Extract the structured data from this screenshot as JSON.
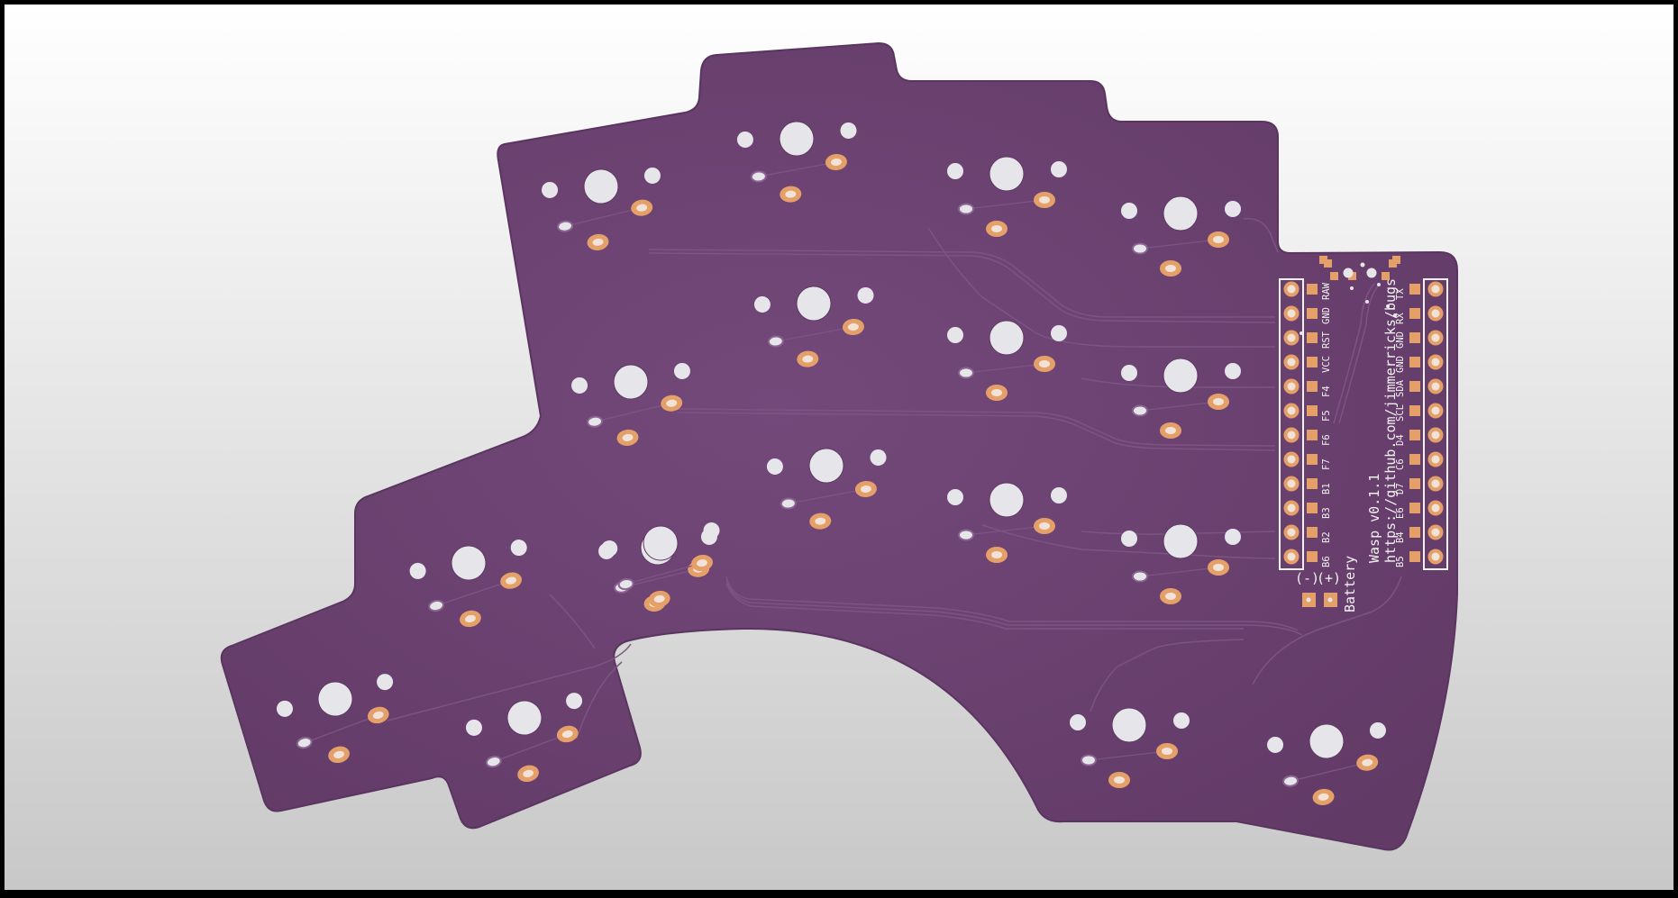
{
  "colors": {
    "frame": "#000000",
    "bg_top": "#ffffff",
    "bg_bottom": "#c8c8c8",
    "board": "#6a426e",
    "board_light": "#70497a",
    "trace": "#7c5483",
    "silk": "#f2f2f2",
    "pad": "#e5a06a",
    "hole": "#e6e6ea"
  },
  "labels": {
    "board_name": "Wasp v0.1.1",
    "repo_url": "https://github.com/jimmerricks/bugs",
    "battery": "Battery",
    "battery_minus": "(-)",
    "battery_plus": "(+)"
  },
  "mcu_pins": {
    "left": [
      "RAW",
      "GND",
      "RST",
      "VCC",
      "F4",
      "F5",
      "F6",
      "F7",
      "B1",
      "B3",
      "B2",
      "B6"
    ],
    "right": [
      "TX",
      "RX",
      "GND",
      "GND",
      "SDA",
      "SCL",
      "D4",
      "C6",
      "D7",
      "E6",
      "B4",
      "B5"
    ]
  },
  "switch_count": 18
}
